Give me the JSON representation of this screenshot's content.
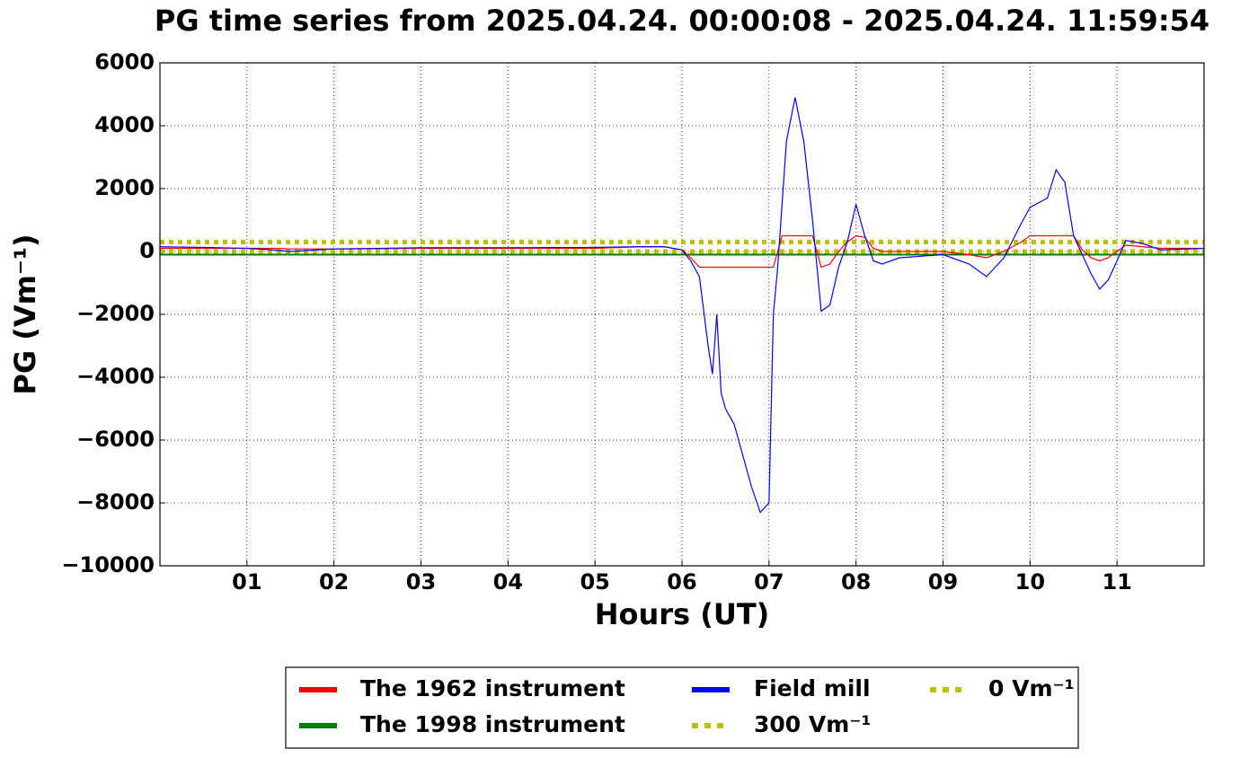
{
  "chart_data": {
    "type": "line",
    "title": "PG time series from 2025.04.24. 00:00:08 - 2025.04.24. 11:59:54",
    "x_label": "Hours (UT)",
    "y_label": "PG (Vm⁻¹)",
    "x": [
      0,
      0.5,
      1,
      1.3,
      1.5,
      2,
      3,
      4,
      5,
      5.5,
      5.8,
      6.0,
      6.1,
      6.2,
      6.3,
      6.35,
      6.4,
      6.45,
      6.5,
      6.6,
      6.7,
      6.8,
      6.9,
      7.0,
      7.05,
      7.1,
      7.15,
      7.2,
      7.3,
      7.4,
      7.5,
      7.6,
      7.7,
      7.8,
      7.9,
      8.0,
      8.1,
      8.2,
      8.3,
      8.5,
      9.0,
      9.3,
      9.5,
      9.7,
      9.9,
      10.0,
      10.2,
      10.3,
      10.4,
      10.5,
      10.6,
      10.7,
      10.8,
      10.9,
      11.0,
      11.1,
      11.3,
      11.5,
      12.0
    ],
    "series": [
      {
        "name": "The 1962 instrument",
        "color": "#ff0000",
        "values": [
          100,
          100,
          100,
          100,
          80,
          80,
          100,
          100,
          100,
          150,
          150,
          50,
          -200,
          -500,
          -500,
          -500,
          -500,
          -500,
          -500,
          -500,
          -500,
          -500,
          -500,
          -500,
          -500,
          0,
          500,
          500,
          500,
          500,
          500,
          -500,
          -400,
          0,
          300,
          500,
          450,
          100,
          0,
          0,
          0,
          -100,
          -200,
          0,
          300,
          500,
          500,
          500,
          500,
          500,
          50,
          -200,
          -300,
          -200,
          0,
          200,
          150,
          100,
          100
        ]
      },
      {
        "name": "The 1998 instrument",
        "color": "#008000",
        "values": [
          -100,
          -100,
          -100,
          -100,
          -100,
          -100,
          -100,
          -100,
          -100,
          -100,
          -100,
          -100,
          -100,
          -100,
          -100,
          -100,
          -100,
          -100,
          -100,
          -100,
          -100,
          -100,
          -100,
          -100,
          -100,
          -100,
          -100,
          -100,
          -100,
          -100,
          -100,
          -100,
          -100,
          -100,
          -100,
          -100,
          -100,
          -100,
          -100,
          -100,
          -100,
          -100,
          -100,
          -100,
          -100,
          -100,
          -100,
          -100,
          -100,
          -100,
          -100,
          -100,
          -100,
          -100,
          -100,
          -100,
          -100,
          -100,
          -100
        ]
      },
      {
        "name": "Field mill",
        "color": "#0000ff",
        "values": [
          150,
          130,
          100,
          50,
          0,
          80,
          120,
          120,
          130,
          150,
          150,
          50,
          -300,
          -800,
          -3000,
          -3900,
          -2000,
          -4500,
          -5000,
          -5500,
          -6500,
          -7500,
          -8300,
          -8000,
          -2000,
          -500,
          1500,
          3500,
          4900,
          3500,
          1000,
          -1900,
          -1700,
          -500,
          300,
          1500,
          500,
          -300,
          -400,
          -200,
          -100,
          -400,
          -800,
          -200,
          900,
          1400,
          1700,
          2600,
          2200,
          500,
          -100,
          -700,
          -1200,
          -900,
          -300,
          350,
          250,
          50,
          100
        ]
      },
      {
        "name": "300 Vm⁻¹",
        "color": "#bfbf00",
        "dashed": true,
        "values": [
          300,
          300,
          300,
          300,
          300,
          300,
          300,
          300,
          300,
          300,
          300,
          300,
          300,
          300,
          300,
          300,
          300,
          300,
          300,
          300,
          300,
          300,
          300,
          300,
          300,
          300,
          300,
          300,
          300,
          300,
          300,
          300,
          300,
          300,
          300,
          300,
          300,
          300,
          300,
          300,
          300,
          300,
          300,
          300,
          300,
          300,
          300,
          300,
          300,
          300,
          300,
          300,
          300,
          300,
          300,
          300,
          300,
          300,
          300
        ]
      },
      {
        "name": "0 Vm⁻¹",
        "color": "#bfbf00",
        "dashed": true,
        "values": [
          0,
          0,
          0,
          0,
          0,
          0,
          0,
          0,
          0,
          0,
          0,
          0,
          0,
          0,
          0,
          0,
          0,
          0,
          0,
          0,
          0,
          0,
          0,
          0,
          0,
          0,
          0,
          0,
          0,
          0,
          0,
          0,
          0,
          0,
          0,
          0,
          0,
          0,
          0,
          0,
          0,
          0,
          0,
          0,
          0,
          0,
          0,
          0,
          0,
          0,
          0,
          0,
          0,
          0,
          0,
          0,
          0,
          0,
          0
        ]
      }
    ],
    "xlim": [
      0,
      12
    ],
    "xticks": [
      {
        "value": 1,
        "label": "01"
      },
      {
        "value": 2,
        "label": "02"
      },
      {
        "value": 3,
        "label": "03"
      },
      {
        "value": 4,
        "label": "04"
      },
      {
        "value": 5,
        "label": "05"
      },
      {
        "value": 6,
        "label": "06"
      },
      {
        "value": 7,
        "label": "07"
      },
      {
        "value": 8,
        "label": "08"
      },
      {
        "value": 9,
        "label": "09"
      },
      {
        "value": 10,
        "label": "10"
      },
      {
        "value": 11,
        "label": "11"
      }
    ],
    "ylim": [
      -10000,
      6000
    ],
    "yticks": [
      {
        "value": -10000,
        "label": "−10000"
      },
      {
        "value": -8000,
        "label": "−8000"
      },
      {
        "value": -6000,
        "label": "−6000"
      },
      {
        "value": -4000,
        "label": "−4000"
      },
      {
        "value": -2000,
        "label": "−2000"
      },
      0,
      2000,
      4000,
      6000
    ],
    "grid": true,
    "legend": "below",
    "legend_columns": 3
  }
}
